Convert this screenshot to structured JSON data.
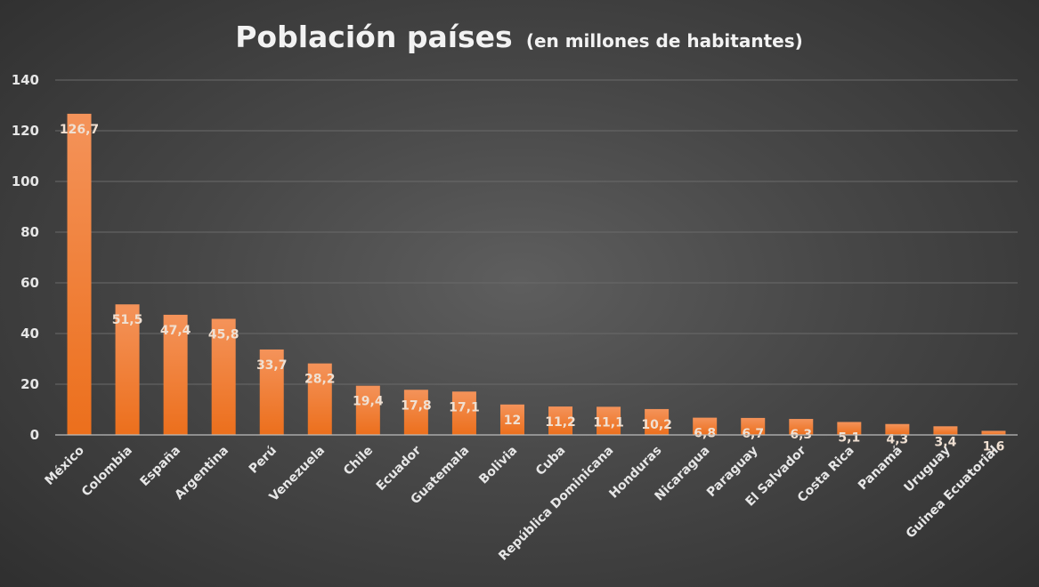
{
  "chart_data": {
    "type": "bar",
    "title": "Población países",
    "subtitle": "(en millones de habitantes)",
    "xlabel": "",
    "ylabel": "",
    "ylim": [
      0,
      140
    ],
    "yticks": [
      0,
      20,
      40,
      60,
      80,
      100,
      120,
      140
    ],
    "grid": true,
    "bar_color": "#ef7a2a",
    "categories": [
      "México",
      "Colombia",
      "España",
      "Argentina",
      "Perú",
      "Venezuela",
      "Chile",
      "Ecuador",
      "Guatemala",
      "Bolivia",
      "Cuba",
      "República Dominicana",
      "Honduras",
      "Nicaragua",
      "Paraguay",
      "El Salvador",
      "Costa Rica",
      "Panamá",
      "Uruguay",
      "Guinea Ecuatorial"
    ],
    "values": [
      126.7,
      51.5,
      47.4,
      45.8,
      33.7,
      28.2,
      19.4,
      17.8,
      17.1,
      12,
      11.2,
      11.1,
      10.2,
      6.8,
      6.7,
      6.3,
      5.1,
      4.3,
      3.4,
      1.6
    ],
    "data_labels": [
      "126,7",
      "51,5",
      "47,4",
      "45,8",
      "33,7",
      "28,2",
      "19,4",
      "17,8",
      "17,1",
      "12",
      "11,2",
      "11,1",
      "10,2",
      "6,8",
      "6,7",
      "6,3",
      "5,1",
      "4,3",
      "3,4",
      "1,6"
    ]
  }
}
